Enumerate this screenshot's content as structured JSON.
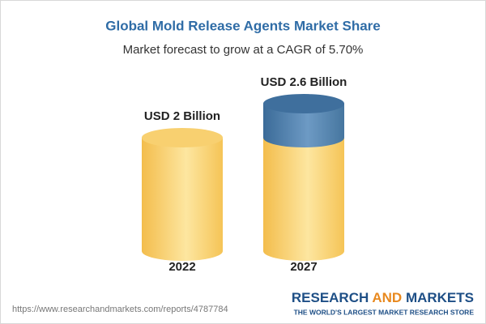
{
  "chart_data": {
    "type": "bar",
    "title": "Global Mold Release Agents Market Share",
    "subtitle": "Market forecast to grow at a CAGR of 5.70%",
    "categories": [
      "2022",
      "2027"
    ],
    "values": [
      2,
      2.6
    ],
    "value_labels": [
      "USD 2 Billion",
      "USD 2.6 Billion"
    ],
    "color": "#f6c65c",
    "growth_color": "#4a7bab"
  },
  "footer": {
    "url": "https://www.researchandmarkets.com/reports/4787784",
    "brand": [
      "RESEARCH",
      "AND",
      "MARKETS"
    ],
    "tagline": "THE WORLD'S LARGEST MARKET RESEARCH STORE"
  }
}
